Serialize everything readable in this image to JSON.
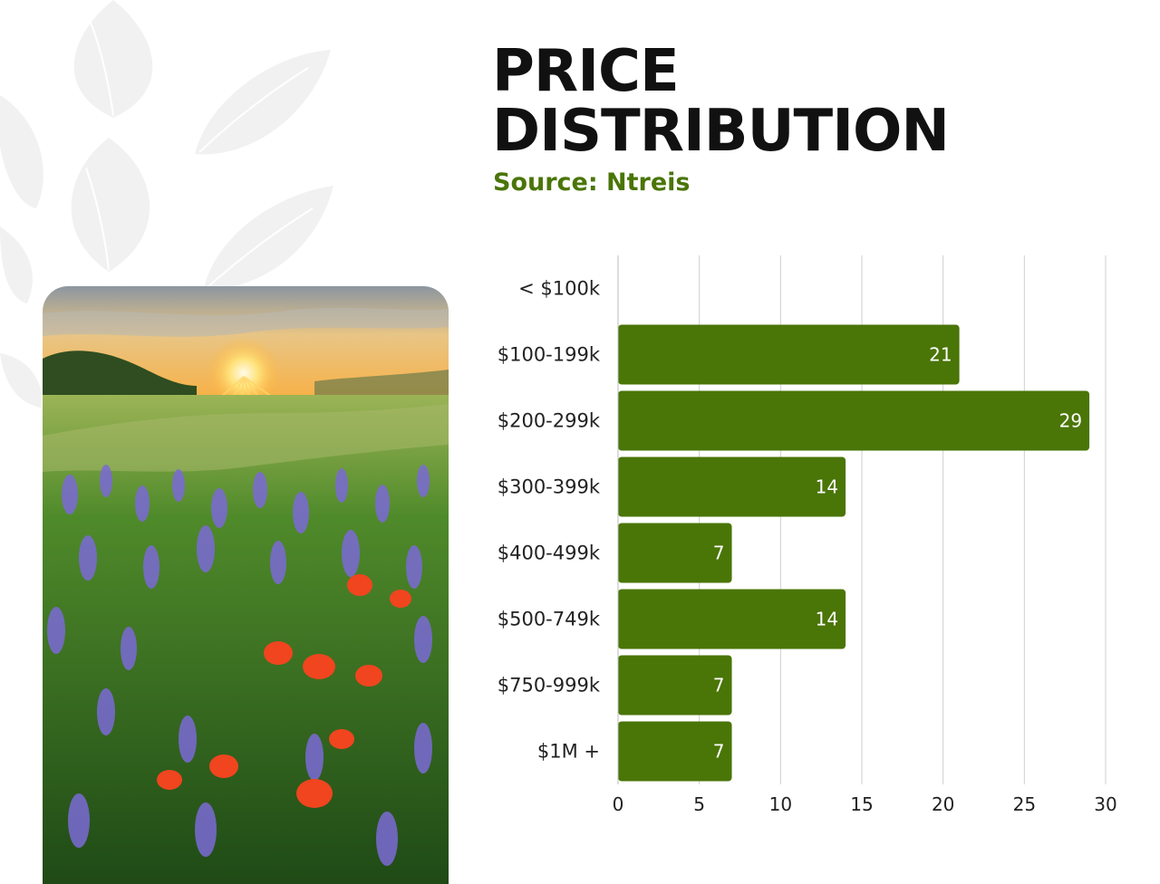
{
  "header": {
    "title_line1": "PRICE",
    "title_line2": "DISTRIBUTION",
    "source": "Source: Ntreis"
  },
  "colors": {
    "bar": "#4a7507",
    "title": "#111111",
    "accent": "#4a7507",
    "grid": "#cfcfcf",
    "leaf": "#f1f1f1"
  },
  "photo": {
    "icon": "wildflower-field-sunset-photo"
  },
  "chart_data": {
    "type": "bar",
    "orientation": "horizontal",
    "categories": [
      "< $100k",
      "$100-199k",
      "$200-299k",
      "$300-399k",
      "$400-499k",
      "$500-749k",
      "$750-999k",
      "$1M +"
    ],
    "values": [
      0,
      21,
      29,
      14,
      7,
      14,
      7,
      7
    ],
    "labels": [
      "",
      "21",
      "29",
      "14",
      "7",
      "14",
      "7",
      "7"
    ],
    "xticks": [
      0,
      5,
      10,
      15,
      20,
      25,
      30
    ],
    "xlim": [
      0,
      30
    ],
    "grid": true,
    "legend": false,
    "title": "",
    "xlabel": "",
    "ylabel": ""
  }
}
